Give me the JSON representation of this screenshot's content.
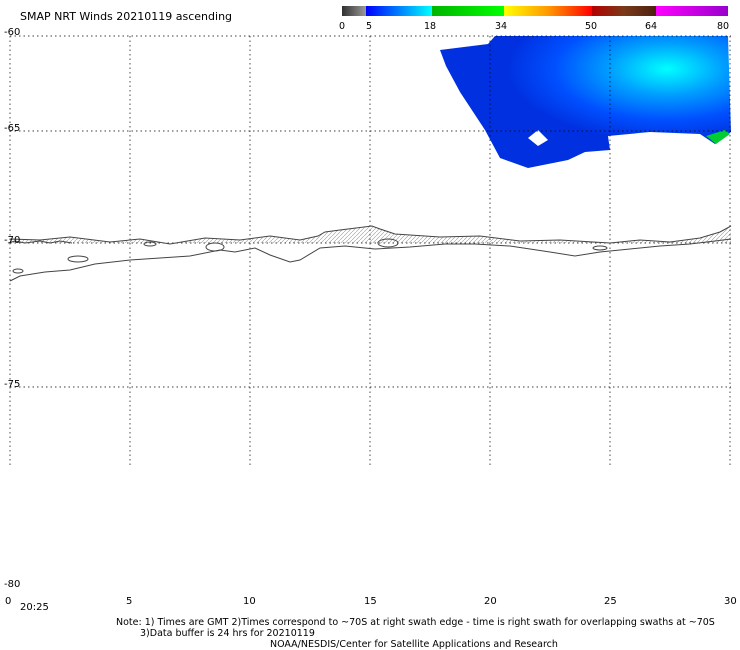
{
  "title": "SMAP NRT Winds 20210119 ascending",
  "colorbar": {
    "ticks": [
      "0",
      "5",
      "18",
      "34",
      "50",
      "64",
      "80"
    ],
    "segments": [
      {
        "from": 0,
        "to": 5,
        "colors": [
          "#303030",
          "#9a9a9a"
        ]
      },
      {
        "from": 5,
        "to": 18,
        "colors": [
          "#0000ff",
          "#00ffff"
        ]
      },
      {
        "from": 18,
        "to": 34,
        "colors": [
          "#00b400",
          "#00ff00"
        ]
      },
      {
        "from": 34,
        "to": 50,
        "colors": [
          "#ffff00",
          "#ff9900",
          "#ff0000"
        ]
      },
      {
        "from": 50,
        "to": 64,
        "colors": [
          "#b40000",
          "#7a3a1a",
          "#4d2010"
        ]
      },
      {
        "from": 64,
        "to": 80,
        "colors": [
          "#ff00ff",
          "#9900cc"
        ]
      }
    ]
  },
  "axes": {
    "lat_labels": [
      "-60",
      "-65",
      "-70",
      "-75",
      "-80"
    ],
    "lon_labels": [
      "0",
      "5",
      "10",
      "15",
      "20",
      "25",
      "30"
    ],
    "lat_range": [
      -60,
      -80
    ],
    "lon_range": [
      0,
      30
    ],
    "grid": true
  },
  "time_label": "20:25",
  "notes": [
    "Note: 1) Times are GMT 2)Times correspond to ~70S at right swath edge - time is right swath for overlapping swaths at ~70S",
    "3)Data buffer is 24 hrs for 20210119",
    "NOAA/NESDIS/Center for Satellite Applications and Research"
  ]
}
